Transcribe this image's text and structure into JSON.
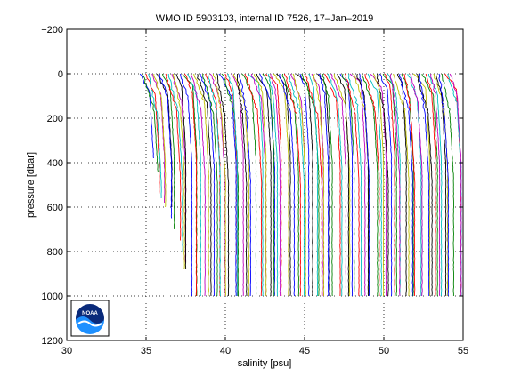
{
  "chart_data": {
    "type": "line",
    "title": "WMO ID 5903103, internal ID 7526, 17–Jan–2019",
    "xlabel": "salinity [psu]",
    "ylabel": "pressure [dbar]",
    "xlim": [
      30,
      55
    ],
    "ylim": [
      1200,
      -200
    ],
    "x_ticks": [
      30,
      35,
      40,
      45,
      50,
      55
    ],
    "y_ticks": [
      -200,
      0,
      200,
      400,
      600,
      800,
      1000,
      1200
    ],
    "x_tick_labels": [
      "30",
      "35",
      "40",
      "45",
      "50",
      "55"
    ],
    "y_tick_labels": [
      "−200",
      "0",
      "200",
      "400",
      "600",
      "800",
      "1000",
      "1200"
    ],
    "grid": true,
    "grid_style": "dotted",
    "profile_count": 110,
    "profile_offset_psu": 0.18,
    "base_salinity_start": 34.6,
    "max_pressure": 1000,
    "series_colors": [
      "#0000ff",
      "#008000",
      "#ff0000",
      "#00bfbf",
      "#bf00bf",
      "#bfbf00",
      "#000000"
    ]
  },
  "logo": {
    "name": "NOAA",
    "text": "NOAA"
  }
}
